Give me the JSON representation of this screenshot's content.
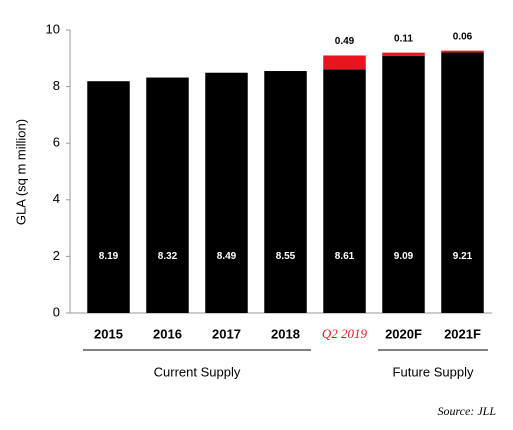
{
  "chart_data": {
    "type": "stacked-bar",
    "y_label": "GLA (sq m million)",
    "categories": [
      "2015",
      "2016",
      "2017",
      "2018",
      "Q2 2019",
      "2020F",
      "2021F"
    ],
    "series": [
      {
        "color": "#000000",
        "label_color": "#ffffff",
        "values": [
          8.19,
          8.32,
          8.49,
          8.55,
          8.61,
          9.09,
          9.21
        ]
      },
      {
        "color": "#e8141e",
        "label_color": "#000000",
        "values": [
          null,
          null,
          null,
          null,
          0.49,
          0.11,
          0.06
        ]
      }
    ],
    "ylim": [
      0,
      10
    ],
    "yticks": [
      0,
      2,
      4,
      6,
      8,
      10
    ],
    "highlight": {
      "category": 4,
      "color": "#e8141e"
    },
    "groups": [
      {
        "label": "Current Supply",
        "from": 0,
        "to": 3
      },
      {
        "label": "Future Supply",
        "from": 5,
        "to": 6
      }
    ],
    "source": "Source: JLL"
  }
}
